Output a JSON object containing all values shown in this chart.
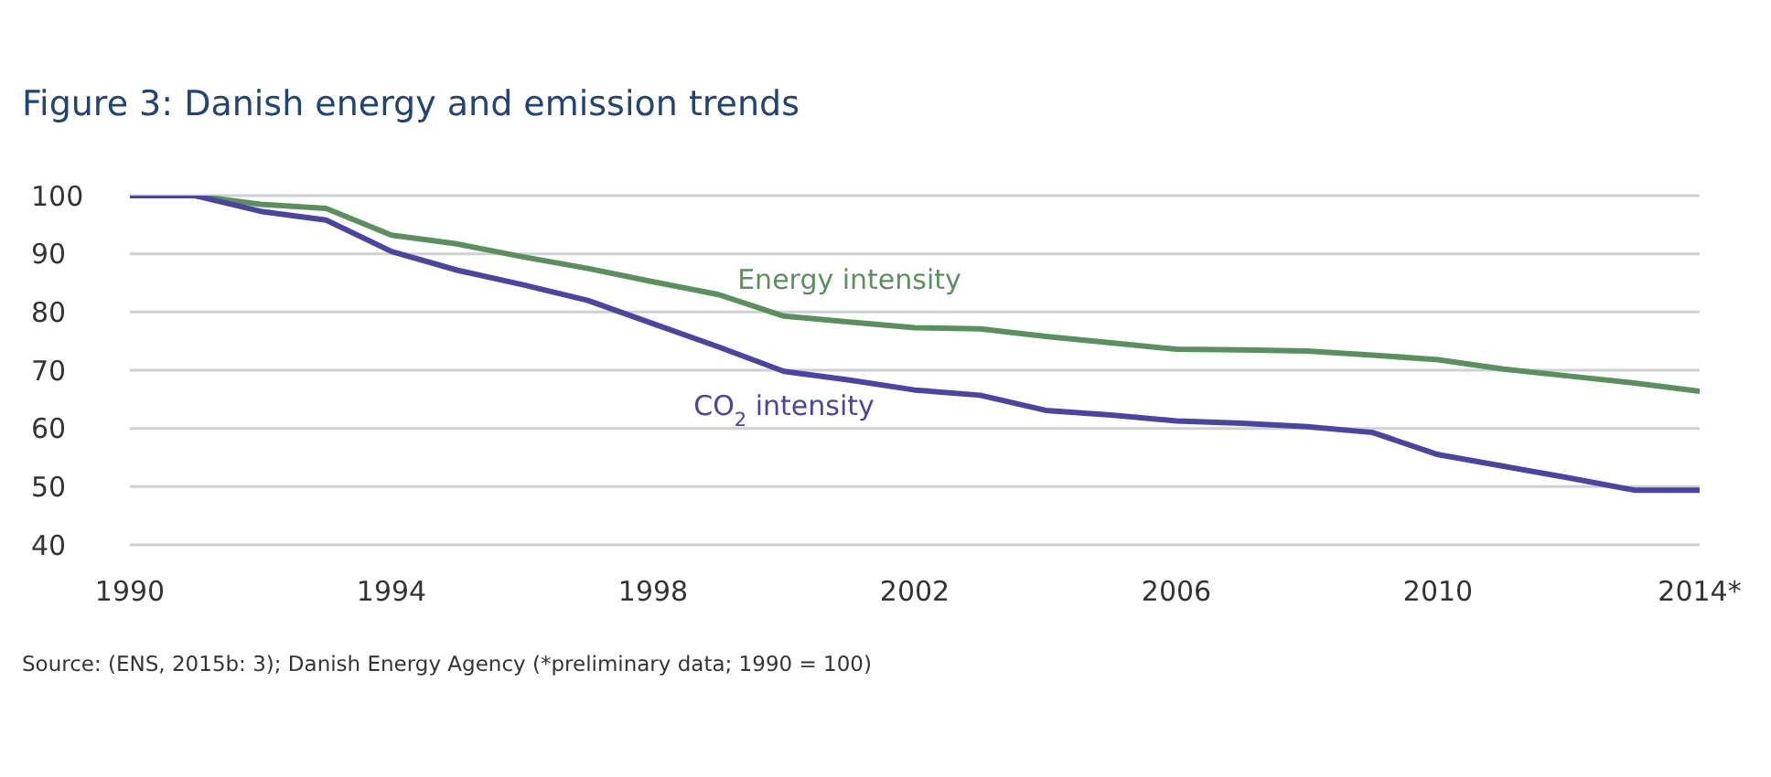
{
  "chart_data": {
    "type": "line",
    "title": "Figure 3: Danish energy and emission trends",
    "annotations": [
      "Source: (ENS, 2015b: 3); Danish Energy Agency (*preliminary data; 1990 = 100)"
    ],
    "x": [
      1990,
      1991,
      1992,
      1993,
      1994,
      1995,
      1996,
      1997,
      1998,
      1999,
      2000,
      2001,
      2002,
      2003,
      2004,
      2005,
      2006,
      2007,
      2008,
      2009,
      2010,
      2011,
      2012,
      2013,
      2014
    ],
    "series": [
      {
        "name": "Energy intensity",
        "color": "#5b8f5e",
        "values": [
          100,
          100,
          98.5,
          97.8,
          93.2,
          91.7,
          89.5,
          87.5,
          85.2,
          83,
          79.3,
          78.3,
          77.3,
          77.1,
          75.8,
          74.7,
          73.6,
          73.5,
          73.3,
          72.6,
          71.8,
          70.2,
          69,
          67.8,
          66.4
        ]
      },
      {
        "name": "CO$_{2}$ intensity",
        "color": "#4b44a0",
        "values": [
          100,
          100,
          97.3,
          95.8,
          90.4,
          87.2,
          84.7,
          82,
          78,
          74,
          69.8,
          68.3,
          66.6,
          65.7,
          63.1,
          62.3,
          61.3,
          60.9,
          60.3,
          59.3,
          55.5,
          53.5,
          51.5,
          49.4,
          49.4
        ]
      }
    ],
    "xlim": [
      1990,
      2014
    ],
    "xticks": [
      1990,
      1994,
      1998,
      2002,
      2006,
      2010,
      {
        "value": 2014,
        "label": "2014*"
      }
    ],
    "ylim": [
      40,
      100
    ],
    "yticks": [
      40,
      50,
      60,
      70,
      80,
      90,
      100
    ],
    "grid": "y",
    "legend": false,
    "marker": "none",
    "line_style": "solid"
  }
}
